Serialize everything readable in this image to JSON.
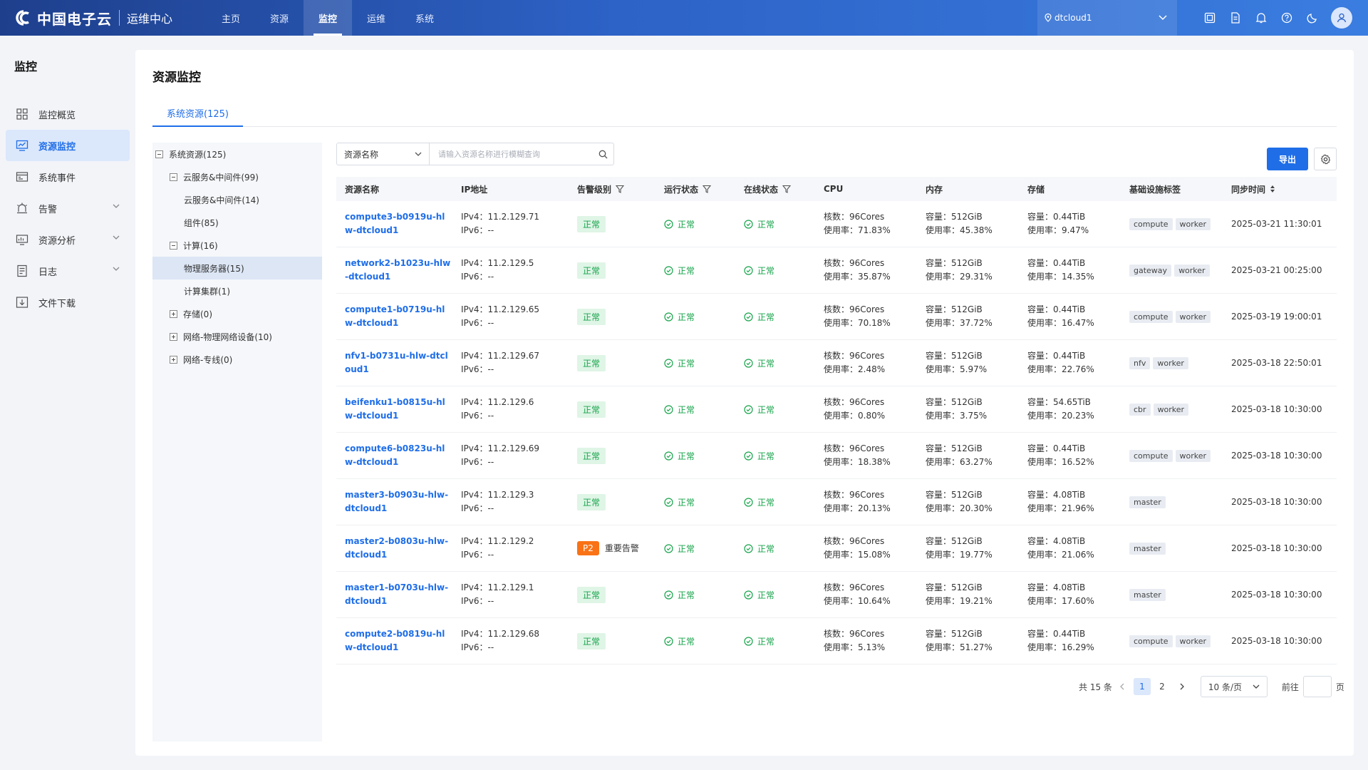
{
  "app": {
    "brand": "中国电子云",
    "subtitle": "运维中心"
  },
  "nav": {
    "items": [
      "主页",
      "资源",
      "监控",
      "运维",
      "系统"
    ],
    "active": "监控"
  },
  "header": {
    "datacenter": "dtcloud1",
    "icons": [
      "screen-icon",
      "document-icon",
      "bell-icon",
      "help-icon",
      "moon-icon",
      "user-icon"
    ]
  },
  "sidebar": {
    "title": "监控",
    "items": [
      {
        "label": "监控概览",
        "icon": "grid-icon"
      },
      {
        "label": "资源监控",
        "icon": "monitor-chart-icon",
        "active": true
      },
      {
        "label": "系统事件",
        "icon": "event-icon"
      },
      {
        "label": "告警",
        "icon": "alarm-icon",
        "expandable": true
      },
      {
        "label": "资源分析",
        "icon": "analysis-icon",
        "expandable": true
      },
      {
        "label": "日志",
        "icon": "log-icon",
        "expandable": true
      },
      {
        "label": "文件下载",
        "icon": "download-icon"
      }
    ]
  },
  "page": {
    "title": "资源监控",
    "tab": "系统资源(125)"
  },
  "tree": [
    {
      "label": "系统资源(125)",
      "box": "minus"
    },
    {
      "label": "云服务&中间件(99)",
      "box": "minus"
    },
    {
      "label": "云服务&中间件(14)",
      "box": ""
    },
    {
      "label": "组件(85)",
      "box": ""
    },
    {
      "label": "计算(16)",
      "box": "minus"
    },
    {
      "label": "物理服务器(15)",
      "box": "",
      "selected": true
    },
    {
      "label": "计算集群(1)",
      "box": ""
    },
    {
      "label": "存储(0)",
      "box": "plus"
    },
    {
      "label": "网络-物理网络设备(10)",
      "box": "plus"
    },
    {
      "label": "网络-专线(0)",
      "box": "plus"
    }
  ],
  "search": {
    "type": "资源名称",
    "placeholder": "请输入资源名称进行模糊查询"
  },
  "toolbar": {
    "export": "导出"
  },
  "table": {
    "headers": [
      "资源名称",
      "IP地址",
      "告警级别",
      "运行状态",
      "在线状态",
      "CPU",
      "内存",
      "存储",
      "基础设施标签",
      "同步时间"
    ],
    "rows": [
      {
        "name": "compute3-b0919u-hlw-dtcloud1",
        "ipv4": "IPv4：11.2.129.71",
        "ipv6": "IPv6：--",
        "alarm": "正常",
        "alarm_text": "",
        "run": "正常",
        "online": "正常",
        "cpu1": "核数：96Cores",
        "cpu2": "使用率：71.83%",
        "mem1": "容量：512GiB",
        "mem2": "使用率：45.38%",
        "sto1": "容量：0.44TiB",
        "sto2": "使用率：9.47%",
        "tags": [
          "compute",
          "worker"
        ],
        "time": "2025-03-21 11:30:01"
      },
      {
        "name": "network2-b1023u-hlw-dtcloud1",
        "ipv4": "IPv4：11.2.129.5",
        "ipv6": "IPv6：--",
        "alarm": "正常",
        "alarm_text": "",
        "run": "正常",
        "online": "正常",
        "cpu1": "核数：96Cores",
        "cpu2": "使用率：35.87%",
        "mem1": "容量：512GiB",
        "mem2": "使用率：29.31%",
        "sto1": "容量：0.44TiB",
        "sto2": "使用率：14.35%",
        "tags": [
          "gateway",
          "worker"
        ],
        "time": "2025-03-21 00:25:00"
      },
      {
        "name": "compute1-b0719u-hlw-dtcloud1",
        "ipv4": "IPv4：11.2.129.65",
        "ipv6": "IPv6：--",
        "alarm": "正常",
        "alarm_text": "",
        "run": "正常",
        "online": "正常",
        "cpu1": "核数：96Cores",
        "cpu2": "使用率：70.18%",
        "mem1": "容量：512GiB",
        "mem2": "使用率：37.72%",
        "sto1": "容量：0.44TiB",
        "sto2": "使用率：16.47%",
        "tags": [
          "compute",
          "worker"
        ],
        "time": "2025-03-19 19:00:01"
      },
      {
        "name": "nfv1-b0731u-hlw-dtcloud1",
        "ipv4": "IPv4：11.2.129.67",
        "ipv6": "IPv6：--",
        "alarm": "正常",
        "alarm_text": "",
        "run": "正常",
        "online": "正常",
        "cpu1": "核数：96Cores",
        "cpu2": "使用率：2.48%",
        "mem1": "容量：512GiB",
        "mem2": "使用率：5.97%",
        "sto1": "容量：0.44TiB",
        "sto2": "使用率：22.76%",
        "tags": [
          "nfv",
          "worker"
        ],
        "time": "2025-03-18 22:50:01"
      },
      {
        "name": "beifenku1-b0815u-hlw-dtcloud1",
        "ipv4": "IPv4：11.2.129.6",
        "ipv6": "IPv6：--",
        "alarm": "正常",
        "alarm_text": "",
        "run": "正常",
        "online": "正常",
        "cpu1": "核数：96Cores",
        "cpu2": "使用率：0.80%",
        "mem1": "容量：512GiB",
        "mem2": "使用率：3.75%",
        "sto1": "容量：54.65TiB",
        "sto2": "使用率：20.23%",
        "tags": [
          "cbr",
          "worker"
        ],
        "time": "2025-03-18 10:30:00"
      },
      {
        "name": "compute6-b0823u-hlw-dtcloud1",
        "ipv4": "IPv4：11.2.129.69",
        "ipv6": "IPv6：--",
        "alarm": "正常",
        "alarm_text": "",
        "run": "正常",
        "online": "正常",
        "cpu1": "核数：96Cores",
        "cpu2": "使用率：18.38%",
        "mem1": "容量：512GiB",
        "mem2": "使用率：63.27%",
        "sto1": "容量：0.44TiB",
        "sto2": "使用率：16.52%",
        "tags": [
          "compute",
          "worker"
        ],
        "time": "2025-03-18 10:30:00"
      },
      {
        "name": "master3-b0903u-hlw-dtcloud1",
        "ipv4": "IPv4：11.2.129.3",
        "ipv6": "IPv6：--",
        "alarm": "正常",
        "alarm_text": "",
        "run": "正常",
        "online": "正常",
        "cpu1": "核数：96Cores",
        "cpu2": "使用率：20.13%",
        "mem1": "容量：512GiB",
        "mem2": "使用率：20.30%",
        "sto1": "容量：4.08TiB",
        "sto2": "使用率：21.96%",
        "tags": [
          "master"
        ],
        "time": "2025-03-18 10:30:00"
      },
      {
        "name": "master2-b0803u-hlw-dtcloud1",
        "ipv4": "IPv4：11.2.129.2",
        "ipv6": "IPv6：--",
        "alarm": "P2",
        "alarm_text": "重要告警",
        "run": "正常",
        "online": "正常",
        "cpu1": "核数：96Cores",
        "cpu2": "使用率：15.08%",
        "mem1": "容量：512GiB",
        "mem2": "使用率：19.77%",
        "sto1": "容量：4.08TiB",
        "sto2": "使用率：21.06%",
        "tags": [
          "master"
        ],
        "time": "2025-03-18 10:30:00"
      },
      {
        "name": "master1-b0703u-hlw-dtcloud1",
        "ipv4": "IPv4：11.2.129.1",
        "ipv6": "IPv6：--",
        "alarm": "正常",
        "alarm_text": "",
        "run": "正常",
        "online": "正常",
        "cpu1": "核数：96Cores",
        "cpu2": "使用率：10.64%",
        "mem1": "容量：512GiB",
        "mem2": "使用率：19.21%",
        "sto1": "容量：4.08TiB",
        "sto2": "使用率：17.60%",
        "tags": [
          "master"
        ],
        "time": "2025-03-18 10:30:00"
      },
      {
        "name": "compute2-b0819u-hlw-dtcloud1",
        "ipv4": "IPv4：11.2.129.68",
        "ipv6": "IPv6：--",
        "alarm": "正常",
        "alarm_text": "",
        "run": "正常",
        "online": "正常",
        "cpu1": "核数：96Cores",
        "cpu2": "使用率：5.13%",
        "mem1": "容量：512GiB",
        "mem2": "使用率：51.27%",
        "sto1": "容量：0.44TiB",
        "sto2": "使用率：16.29%",
        "tags": [
          "compute",
          "worker"
        ],
        "time": "2025-03-18 10:30:00"
      }
    ]
  },
  "pagination": {
    "total": "共 15 条",
    "pages": [
      "1",
      "2"
    ],
    "current": "1",
    "size": "10 条/页",
    "goto_label": "前往",
    "page_suffix": "页"
  },
  "colors": {
    "primary": "#1f6ee8",
    "success": "#16a34a",
    "warning": "#f97316"
  }
}
